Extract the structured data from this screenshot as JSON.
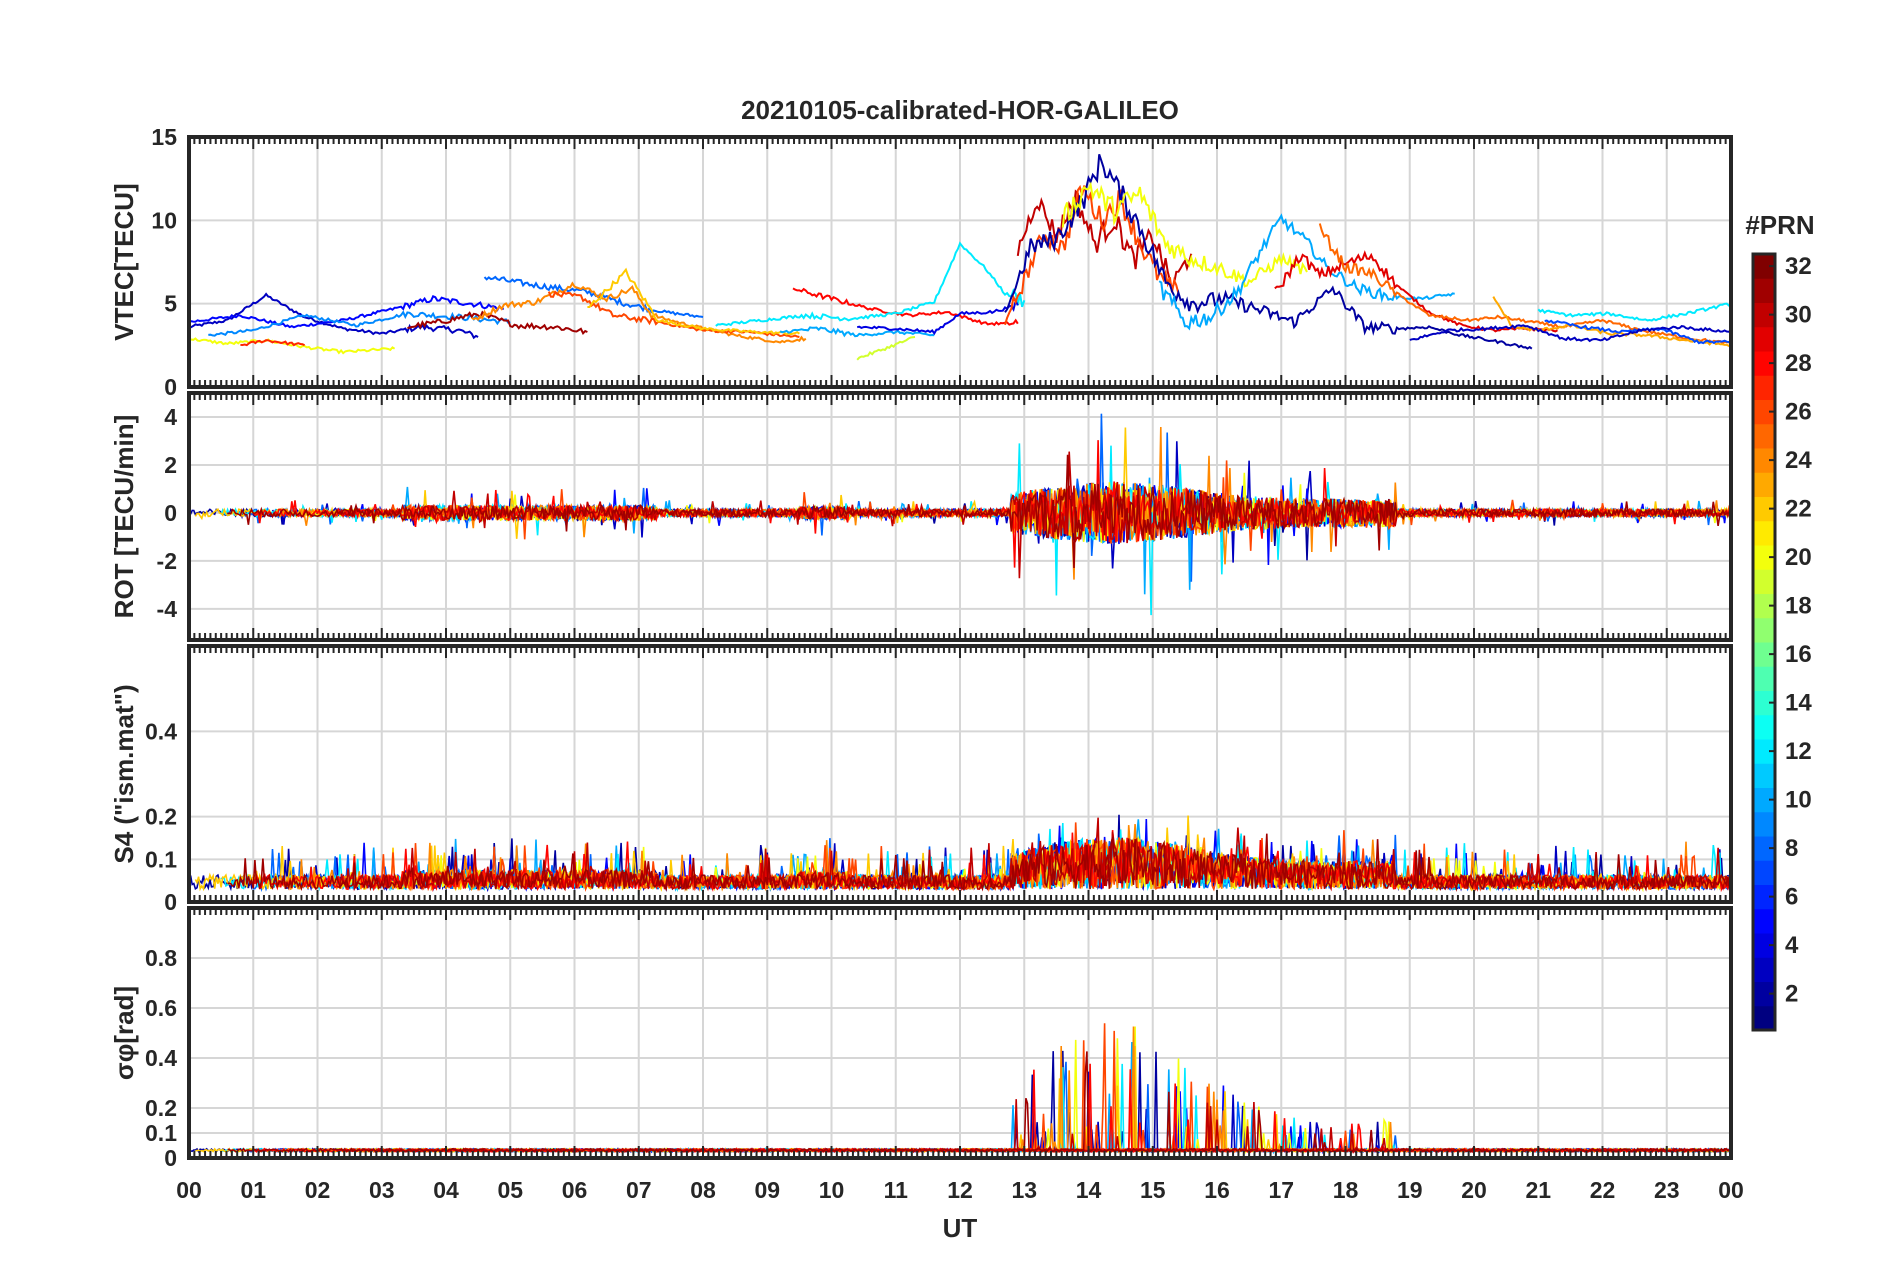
{
  "chart_data": {
    "type": "line",
    "title": "20210105-calibrated-HOR-GALILEO",
    "xlabel": "UT",
    "x_ticks": [
      "00",
      "01",
      "02",
      "03",
      "04",
      "05",
      "06",
      "07",
      "08",
      "09",
      "10",
      "11",
      "12",
      "13",
      "14",
      "15",
      "16",
      "17",
      "18",
      "19",
      "20",
      "21",
      "22",
      "23",
      "00"
    ],
    "xlim": [
      0,
      24
    ],
    "colorbar": {
      "title": "#PRN",
      "range": [
        1,
        32
      ],
      "ticks": [
        "2",
        "4",
        "6",
        "8",
        "10",
        "12",
        "14",
        "16",
        "18",
        "20",
        "22",
        "24",
        "26",
        "28",
        "30",
        "32"
      ]
    },
    "panels": [
      {
        "id": "vtec",
        "ylabel": "VTEC[TECU]",
        "ylim": [
          0,
          15
        ],
        "yticks": [
          "0",
          "5",
          "10",
          "15"
        ],
        "series": [
          {
            "prn": 3,
            "points": [
              [
                0,
                3.6
              ],
              [
                0.6,
                4.0
              ],
              [
                1.2,
                5.5
              ],
              [
                1.8,
                4.2
              ],
              [
                2.4,
                3.5
              ],
              [
                3.0,
                3.2
              ],
              [
                3.6,
                3.6
              ],
              [
                4.2,
                3.4
              ],
              [
                4.5,
                3.0
              ]
            ]
          },
          {
            "prn": 5,
            "points": [
              [
                0,
                3.9
              ],
              [
                0.8,
                4.3
              ],
              [
                1.6,
                3.6
              ],
              [
                2.4,
                4.0
              ],
              [
                3.2,
                4.7
              ],
              [
                3.8,
                5.3
              ],
              [
                4.4,
                5.0
              ],
              [
                4.9,
                4.7
              ]
            ]
          },
          {
            "prn": 9,
            "points": [
              [
                0.3,
                3.1
              ],
              [
                1.0,
                3.4
              ],
              [
                1.8,
                4.3
              ],
              [
                2.6,
                3.7
              ],
              [
                3.4,
                4.4
              ],
              [
                4.2,
                4.2
              ],
              [
                5.0,
                3.9
              ]
            ]
          },
          {
            "prn": 8,
            "points": [
              [
                4.6,
                6.6
              ],
              [
                5.4,
                6.1
              ],
              [
                6.2,
                5.7
              ],
              [
                6.8,
                5.0
              ],
              [
                7.4,
                4.5
              ],
              [
                8.0,
                4.2
              ]
            ]
          },
          {
            "prn": 20,
            "points": [
              [
                0,
                2.9
              ],
              [
                0.6,
                2.6
              ],
              [
                1.2,
                2.8
              ],
              [
                1.8,
                2.4
              ],
              [
                2.4,
                2.1
              ],
              [
                3.2,
                2.3
              ]
            ]
          },
          {
            "prn": 27,
            "points": [
              [
                0.8,
                2.5
              ],
              [
                1.2,
                2.8
              ],
              [
                1.8,
                2.5
              ]
            ]
          },
          {
            "prn": 31,
            "points": [
              [
                3.4,
                3.6
              ],
              [
                3.9,
                3.9
              ],
              [
                4.5,
                4.4
              ],
              [
                5.1,
                3.7
              ],
              [
                5.7,
                3.6
              ],
              [
                6.2,
                3.3
              ]
            ]
          },
          {
            "prn": 24,
            "points": [
              [
                4.4,
                4.0
              ],
              [
                4.9,
                4.9
              ],
              [
                5.4,
                5.1
              ],
              [
                6.0,
                6.2
              ],
              [
                6.5,
                5.3
              ],
              [
                6.9,
                5.9
              ],
              [
                7.2,
                4.3
              ],
              [
                7.8,
                3.7
              ],
              [
                8.5,
                3.1
              ],
              [
                9.2,
                2.7
              ],
              [
                9.6,
                2.9
              ]
            ]
          },
          {
            "prn": 26,
            "points": [
              [
                5.6,
                5.6
              ],
              [
                6.1,
                5.4
              ],
              [
                6.6,
                4.3
              ],
              [
                7.3,
                3.9
              ],
              [
                8.0,
                3.4
              ],
              [
                8.7,
                3.3
              ],
              [
                9.5,
                3.0
              ]
            ]
          },
          {
            "prn": 22,
            "points": [
              [
                6.2,
                4.7
              ],
              [
                6.8,
                6.9
              ],
              [
                7.3,
                4.0
              ],
              [
                8.0,
                3.5
              ],
              [
                8.8,
                3.3
              ],
              [
                9.5,
                3.2
              ]
            ]
          },
          {
            "prn": 28,
            "points": [
              [
                9.4,
                5.9
              ],
              [
                10.0,
                5.3
              ],
              [
                10.6,
                4.7
              ],
              [
                11.2,
                4.3
              ],
              [
                11.8,
                4.5
              ],
              [
                12.4,
                3.8
              ],
              [
                12.9,
                3.8
              ]
            ]
          },
          {
            "prn": 12,
            "points": [
              [
                8.2,
                3.7
              ],
              [
                8.9,
                4.0
              ],
              [
                9.6,
                4.3
              ],
              [
                10.3,
                4.1
              ],
              [
                11.0,
                4.4
              ],
              [
                11.6,
                5.1
              ],
              [
                12.0,
                8.6
              ],
              [
                12.4,
                7.1
              ],
              [
                12.7,
                5.6
              ],
              [
                13.0,
                5.2
              ]
            ]
          },
          {
            "prn": 19,
            "points": [
              [
                10.4,
                1.7
              ],
              [
                10.9,
                2.4
              ],
              [
                11.3,
                3.0
              ]
            ]
          },
          {
            "prn": 10,
            "points": [
              [
                9.2,
                3.3
              ],
              [
                9.8,
                3.5
              ],
              [
                10.4,
                3.1
              ],
              [
                11.0,
                3.3
              ],
              [
                11.6,
                3.1
              ]
            ]
          },
          {
            "prn": 4,
            "points": [
              [
                10.4,
                3.6
              ],
              [
                11.0,
                3.5
              ],
              [
                11.6,
                3.3
              ],
              [
                12.0,
                4.4
              ],
              [
                12.5,
                4.5
              ],
              [
                12.9,
                4.9
              ]
            ]
          },
          {
            "prn": 30,
            "points": [
              [
                12.9,
                8.2
              ],
              [
                13.2,
                11.3
              ],
              [
                13.5,
                9.1
              ],
              [
                13.8,
                11.4
              ],
              [
                14.1,
                8.6
              ],
              [
                14.4,
                10.1
              ],
              [
                14.7,
                7.6
              ],
              [
                15.0,
                9.1
              ],
              [
                15.3,
                6.1
              ],
              [
                15.6,
                8.0
              ]
            ]
          },
          {
            "prn": 26,
            "points": [
              [
                12.7,
                3.8
              ],
              [
                13.0,
                6.4
              ],
              [
                13.3,
                9.2
              ],
              [
                13.6,
                8.3
              ],
              [
                13.9,
                12.0
              ],
              [
                14.2,
                10.0
              ],
              [
                14.5,
                11.3
              ],
              [
                14.8,
                8.6
              ],
              [
                15.1,
                6.6
              ],
              [
                15.4,
                5.6
              ]
            ]
          },
          {
            "prn": 2,
            "points": [
              [
                12.7,
                4.4
              ],
              [
                13.1,
                8.4
              ],
              [
                13.5,
                8.9
              ],
              [
                13.9,
                11.1
              ],
              [
                14.2,
                13.6
              ],
              [
                14.5,
                11.6
              ],
              [
                14.8,
                9.6
              ],
              [
                15.2,
                6.3
              ],
              [
                15.6,
                5.0
              ],
              [
                16.1,
                5.3
              ],
              [
                16.6,
                4.7
              ],
              [
                17.2,
                3.9
              ],
              [
                17.8,
                5.9
              ],
              [
                18.3,
                3.6
              ],
              [
                18.8,
                3.5
              ],
              [
                19.3,
                3.6
              ],
              [
                19.8,
                3.1
              ],
              [
                20.4,
                2.7
              ],
              [
                20.9,
                2.3
              ]
            ]
          },
          {
            "prn": 20,
            "points": [
              [
                13.6,
                10.1
              ],
              [
                14.0,
                12.1
              ],
              [
                14.4,
                10.6
              ],
              [
                14.8,
                11.6
              ],
              [
                15.2,
                8.6
              ],
              [
                15.6,
                7.7
              ],
              [
                16.0,
                7.2
              ],
              [
                16.5,
                6.3
              ],
              [
                17.0,
                7.7
              ],
              [
                17.4,
                6.9
              ]
            ]
          },
          {
            "prn": 10,
            "points": [
              [
                15.1,
                6.0
              ],
              [
                15.5,
                3.9
              ],
              [
                15.9,
                4.2
              ],
              [
                16.3,
                5.6
              ],
              [
                16.7,
                8.3
              ],
              [
                17.0,
                10.1
              ],
              [
                17.4,
                8.7
              ],
              [
                17.7,
                7.2
              ],
              [
                18.2,
                5.9
              ],
              [
                18.7,
                5.4
              ],
              [
                19.2,
                5.3
              ],
              [
                19.7,
                5.6
              ]
            ]
          },
          {
            "prn": 29,
            "points": [
              [
                16.9,
                5.6
              ],
              [
                17.3,
                7.9
              ],
              [
                17.6,
                6.7
              ],
              [
                18.0,
                7.4
              ],
              [
                18.4,
                7.9
              ],
              [
                18.8,
                6.1
              ],
              [
                19.3,
                4.5
              ],
              [
                19.8,
                3.7
              ],
              [
                20.3,
                3.4
              ],
              [
                20.8,
                3.5
              ],
              [
                21.3,
                3.4
              ]
            ]
          },
          {
            "prn": 25,
            "points": [
              [
                17.6,
                9.5
              ],
              [
                18.0,
                7.2
              ],
              [
                18.4,
                6.8
              ],
              [
                18.8,
                5.6
              ],
              [
                19.3,
                4.3
              ],
              [
                19.9,
                4.0
              ],
              [
                20.4,
                4.2
              ],
              [
                20.9,
                3.9
              ],
              [
                21.4,
                3.6
              ],
              [
                22.0,
                4.0
              ],
              [
                22.6,
                3.4
              ],
              [
                23.2,
                3.0
              ],
              [
                24.0,
                2.6
              ]
            ]
          },
          {
            "prn": 23,
            "points": [
              [
                20.3,
                5.4
              ],
              [
                20.6,
                3.6
              ],
              [
                21.0,
                3.4
              ],
              [
                21.5,
                3.7
              ],
              [
                22.1,
                3.2
              ],
              [
                22.7,
                3.1
              ],
              [
                23.3,
                2.8
              ],
              [
                24.0,
                2.5
              ]
            ]
          },
          {
            "prn": 12,
            "points": [
              [
                21.0,
                4.6
              ],
              [
                21.5,
                4.3
              ],
              [
                22.1,
                4.4
              ],
              [
                22.7,
                4.0
              ],
              [
                23.3,
                4.4
              ],
              [
                24.0,
                5.0
              ]
            ]
          },
          {
            "prn": 7,
            "points": [
              [
                21.1,
                4.0
              ],
              [
                21.7,
                3.6
              ],
              [
                22.3,
                3.3
              ],
              [
                22.9,
                3.5
              ],
              [
                23.5,
                2.7
              ],
              [
                24.0,
                2.7
              ]
            ]
          },
          {
            "prn": 3,
            "points": [
              [
                19.0,
                2.8
              ],
              [
                19.6,
                3.4
              ],
              [
                20.2,
                3.5
              ],
              [
                20.8,
                3.7
              ],
              [
                21.4,
                2.9
              ],
              [
                22.0,
                2.8
              ],
              [
                22.6,
                3.4
              ],
              [
                23.2,
                3.6
              ],
              [
                24.0,
                3.3
              ]
            ]
          }
        ]
      },
      {
        "id": "rot",
        "ylabel": "ROT [TECU/min]",
        "ylim": [
          -5.3,
          5.0
        ],
        "yticks": [
          "-4",
          "-2",
          "0",
          "2",
          "4"
        ]
      },
      {
        "id": "s4",
        "ylabel": "S4 (\"ism.mat\")",
        "ylim": [
          0,
          0.6
        ],
        "yticks": [
          "0",
          "0.1",
          "0.2",
          "0.4"
        ]
      },
      {
        "id": "sigma",
        "ylabel": "σφ[rad]",
        "ylim": [
          0,
          1.0
        ],
        "yticks": [
          "0",
          "0.1",
          "0.2",
          "0.4",
          "0.6",
          "0.8"
        ]
      }
    ]
  }
}
